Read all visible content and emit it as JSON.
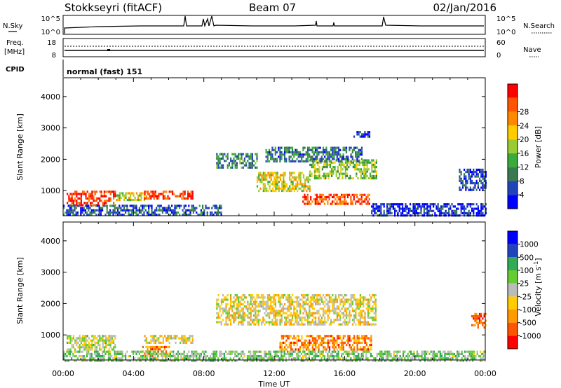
{
  "header": {
    "station": "Stokkseyri (fitACF)",
    "beam": "Beam 07",
    "date": "02/Jan/2016"
  },
  "strips": {
    "nsky_label": "N.Sky",
    "nsearch_label": "N.Search",
    "noise_ticks_left": [
      "10^5",
      "10^0"
    ],
    "noise_ticks_right": [
      "10^5",
      "10^0"
    ],
    "freq_label": "Freq.",
    "freq_unit": "[MHz]",
    "freq_ticks": [
      "18",
      "8"
    ],
    "nave_label": "Nave",
    "nave_ticks": [
      "60",
      "0"
    ],
    "cpid_label": "CPID",
    "cpid_value": "normal (fast) 151"
  },
  "colors": {
    "power_scale": [
      "#0000ff",
      "#2244bb",
      "#3a7a50",
      "#3aaa3a",
      "#99cc33",
      "#ffcc00",
      "#ff8800",
      "#ff5500",
      "#ff0000"
    ],
    "velocity_scale": [
      "#ff0000",
      "#ff5500",
      "#ff9900",
      "#ffcc00",
      "#bbbbbb",
      "#66cc33",
      "#33aa55",
      "#2244bb",
      "#0000ff"
    ],
    "ground_scatter": "#bbbbbb"
  },
  "chart_data": [
    {
      "type": "heatmap",
      "name": "power-panel",
      "ylabel": "Slant Range [km]",
      "yticks": [
        "1000",
        "2000",
        "3000",
        "4000"
      ],
      "ylim": [
        200,
        4600
      ],
      "xlim": [
        0,
        24
      ],
      "colorbar_label": "Power [dB]",
      "colorbar_ticks": [
        "4",
        "8",
        "12",
        "16",
        "20",
        "24",
        "28"
      ],
      "bands": [
        {
          "t0": 0.2,
          "t1": 3.0,
          "r0": 550,
          "r1": 1000,
          "level": 0.9
        },
        {
          "t0": 3.0,
          "t1": 4.6,
          "r0": 700,
          "r1": 950,
          "level": 0.55
        },
        {
          "t0": 4.6,
          "t1": 7.4,
          "r0": 750,
          "r1": 1000,
          "level": 0.85
        },
        {
          "t0": 0.0,
          "t1": 9.0,
          "r0": 200,
          "r1": 550,
          "level": 0.2
        },
        {
          "t0": 8.7,
          "t1": 11.0,
          "r0": 1700,
          "r1": 2200,
          "level": 0.3
        },
        {
          "t0": 11.0,
          "t1": 14.0,
          "r0": 1000,
          "r1": 1600,
          "level": 0.55
        },
        {
          "t0": 14.0,
          "t1": 17.8,
          "r0": 1400,
          "r1": 2000,
          "level": 0.45
        },
        {
          "t0": 13.6,
          "t1": 17.4,
          "r0": 600,
          "r1": 900,
          "level": 0.85
        },
        {
          "t0": 11.5,
          "t1": 17.0,
          "r0": 1900,
          "r1": 2400,
          "level": 0.25
        },
        {
          "t0": 16.5,
          "t1": 17.4,
          "r0": 2750,
          "r1": 2900,
          "level": 0.1
        },
        {
          "t0": 17.5,
          "t1": 24.0,
          "r0": 200,
          "r1": 600,
          "level": 0.1
        },
        {
          "t0": 22.5,
          "t1": 24.0,
          "r0": 1000,
          "r1": 1700,
          "level": 0.15
        }
      ]
    },
    {
      "type": "heatmap",
      "name": "velocity-panel",
      "ylabel": "Slant Range [km]",
      "yticks": [
        "1000",
        "2000",
        "3000",
        "4000"
      ],
      "ylim": [
        200,
        4600
      ],
      "xlim": [
        0,
        24
      ],
      "xticks": [
        "00:00",
        "04:00",
        "08:00",
        "12:00",
        "16:00",
        "20:00",
        "00:00"
      ],
      "xlabel": "Time UT",
      "colorbar_label": "Velocity [m s^-1]",
      "colorbar_ticks": [
        "1000",
        "500",
        "100",
        "25",
        "-25",
        "-100",
        "-500",
        "-1000"
      ],
      "bands": [
        {
          "t0": 4.6,
          "t1": 7.4,
          "r0": 750,
          "r1": 1000,
          "level": 0.44
        },
        {
          "t0": 0.2,
          "t1": 3.0,
          "r0": 550,
          "r1": 1000,
          "level": 0.5
        },
        {
          "t0": 8.7,
          "t1": 17.8,
          "r0": 1300,
          "r1": 2300,
          "level": 0.44
        },
        {
          "t0": 12.3,
          "t1": 17.5,
          "r0": 500,
          "r1": 1000,
          "level": 0.25
        },
        {
          "t0": 4.5,
          "t1": 6.0,
          "r0": 350,
          "r1": 650,
          "level": 0.25
        },
        {
          "t0": 0.0,
          "t1": 24.0,
          "r0": 200,
          "r1": 500,
          "level": 0.6
        },
        {
          "t0": 23.2,
          "t1": 24.0,
          "r0": 1200,
          "r1": 1700,
          "level": 0.2
        }
      ]
    }
  ]
}
